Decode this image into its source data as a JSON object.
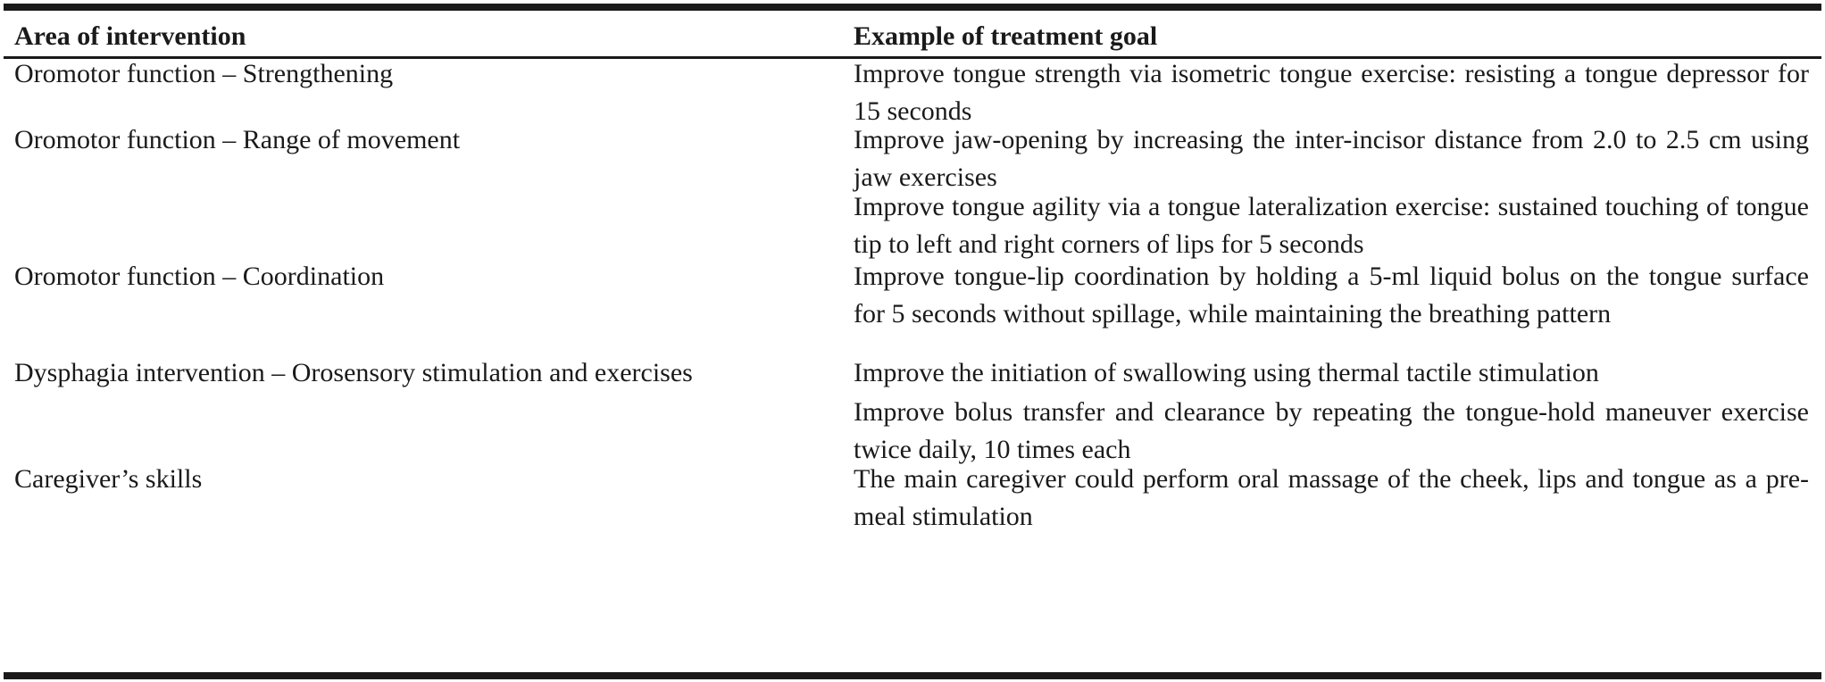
{
  "table": {
    "headers": {
      "area": "Area of intervention",
      "goal": "Example of treatment goal"
    },
    "rows": [
      {
        "area": "Oromotor function – Strengthening",
        "goals": [
          "Improve tongue strength via isometric tongue exercise: resisting a tongue depressor for 15 seconds"
        ]
      },
      {
        "area": "Oromotor function – Range of movement",
        "goals": [
          "Improve jaw-opening by increasing the inter-incisor distance from 2.0 to 2.5 cm using jaw exercises",
          "Improve tongue agility via a tongue lateralization exercise: sustained touching of tongue tip to left and right corners of lips for 5 seconds"
        ]
      },
      {
        "area": "Oromotor function – Coordination",
        "goals": [
          "Improve tongue-lip coordination by holding a 5-ml liquid bolus on the tongue surface for 5 seconds without spillage, while maintaining the breathing pattern"
        ]
      },
      {
        "area": "Dysphagia intervention – Orosensory stimulation and exercises",
        "goals": [
          "Improve the initiation of swallowing using thermal tactile stimulation",
          "Improve bolus transfer and clearance by repeating the tongue-hold maneuver exercise twice daily, 10 times each"
        ]
      },
      {
        "area": "Caregiver’s skills",
        "goals": [
          "The main caregiver could perform oral massage of the cheek, lips and tongue as a pre-meal stimulation"
        ]
      }
    ]
  }
}
